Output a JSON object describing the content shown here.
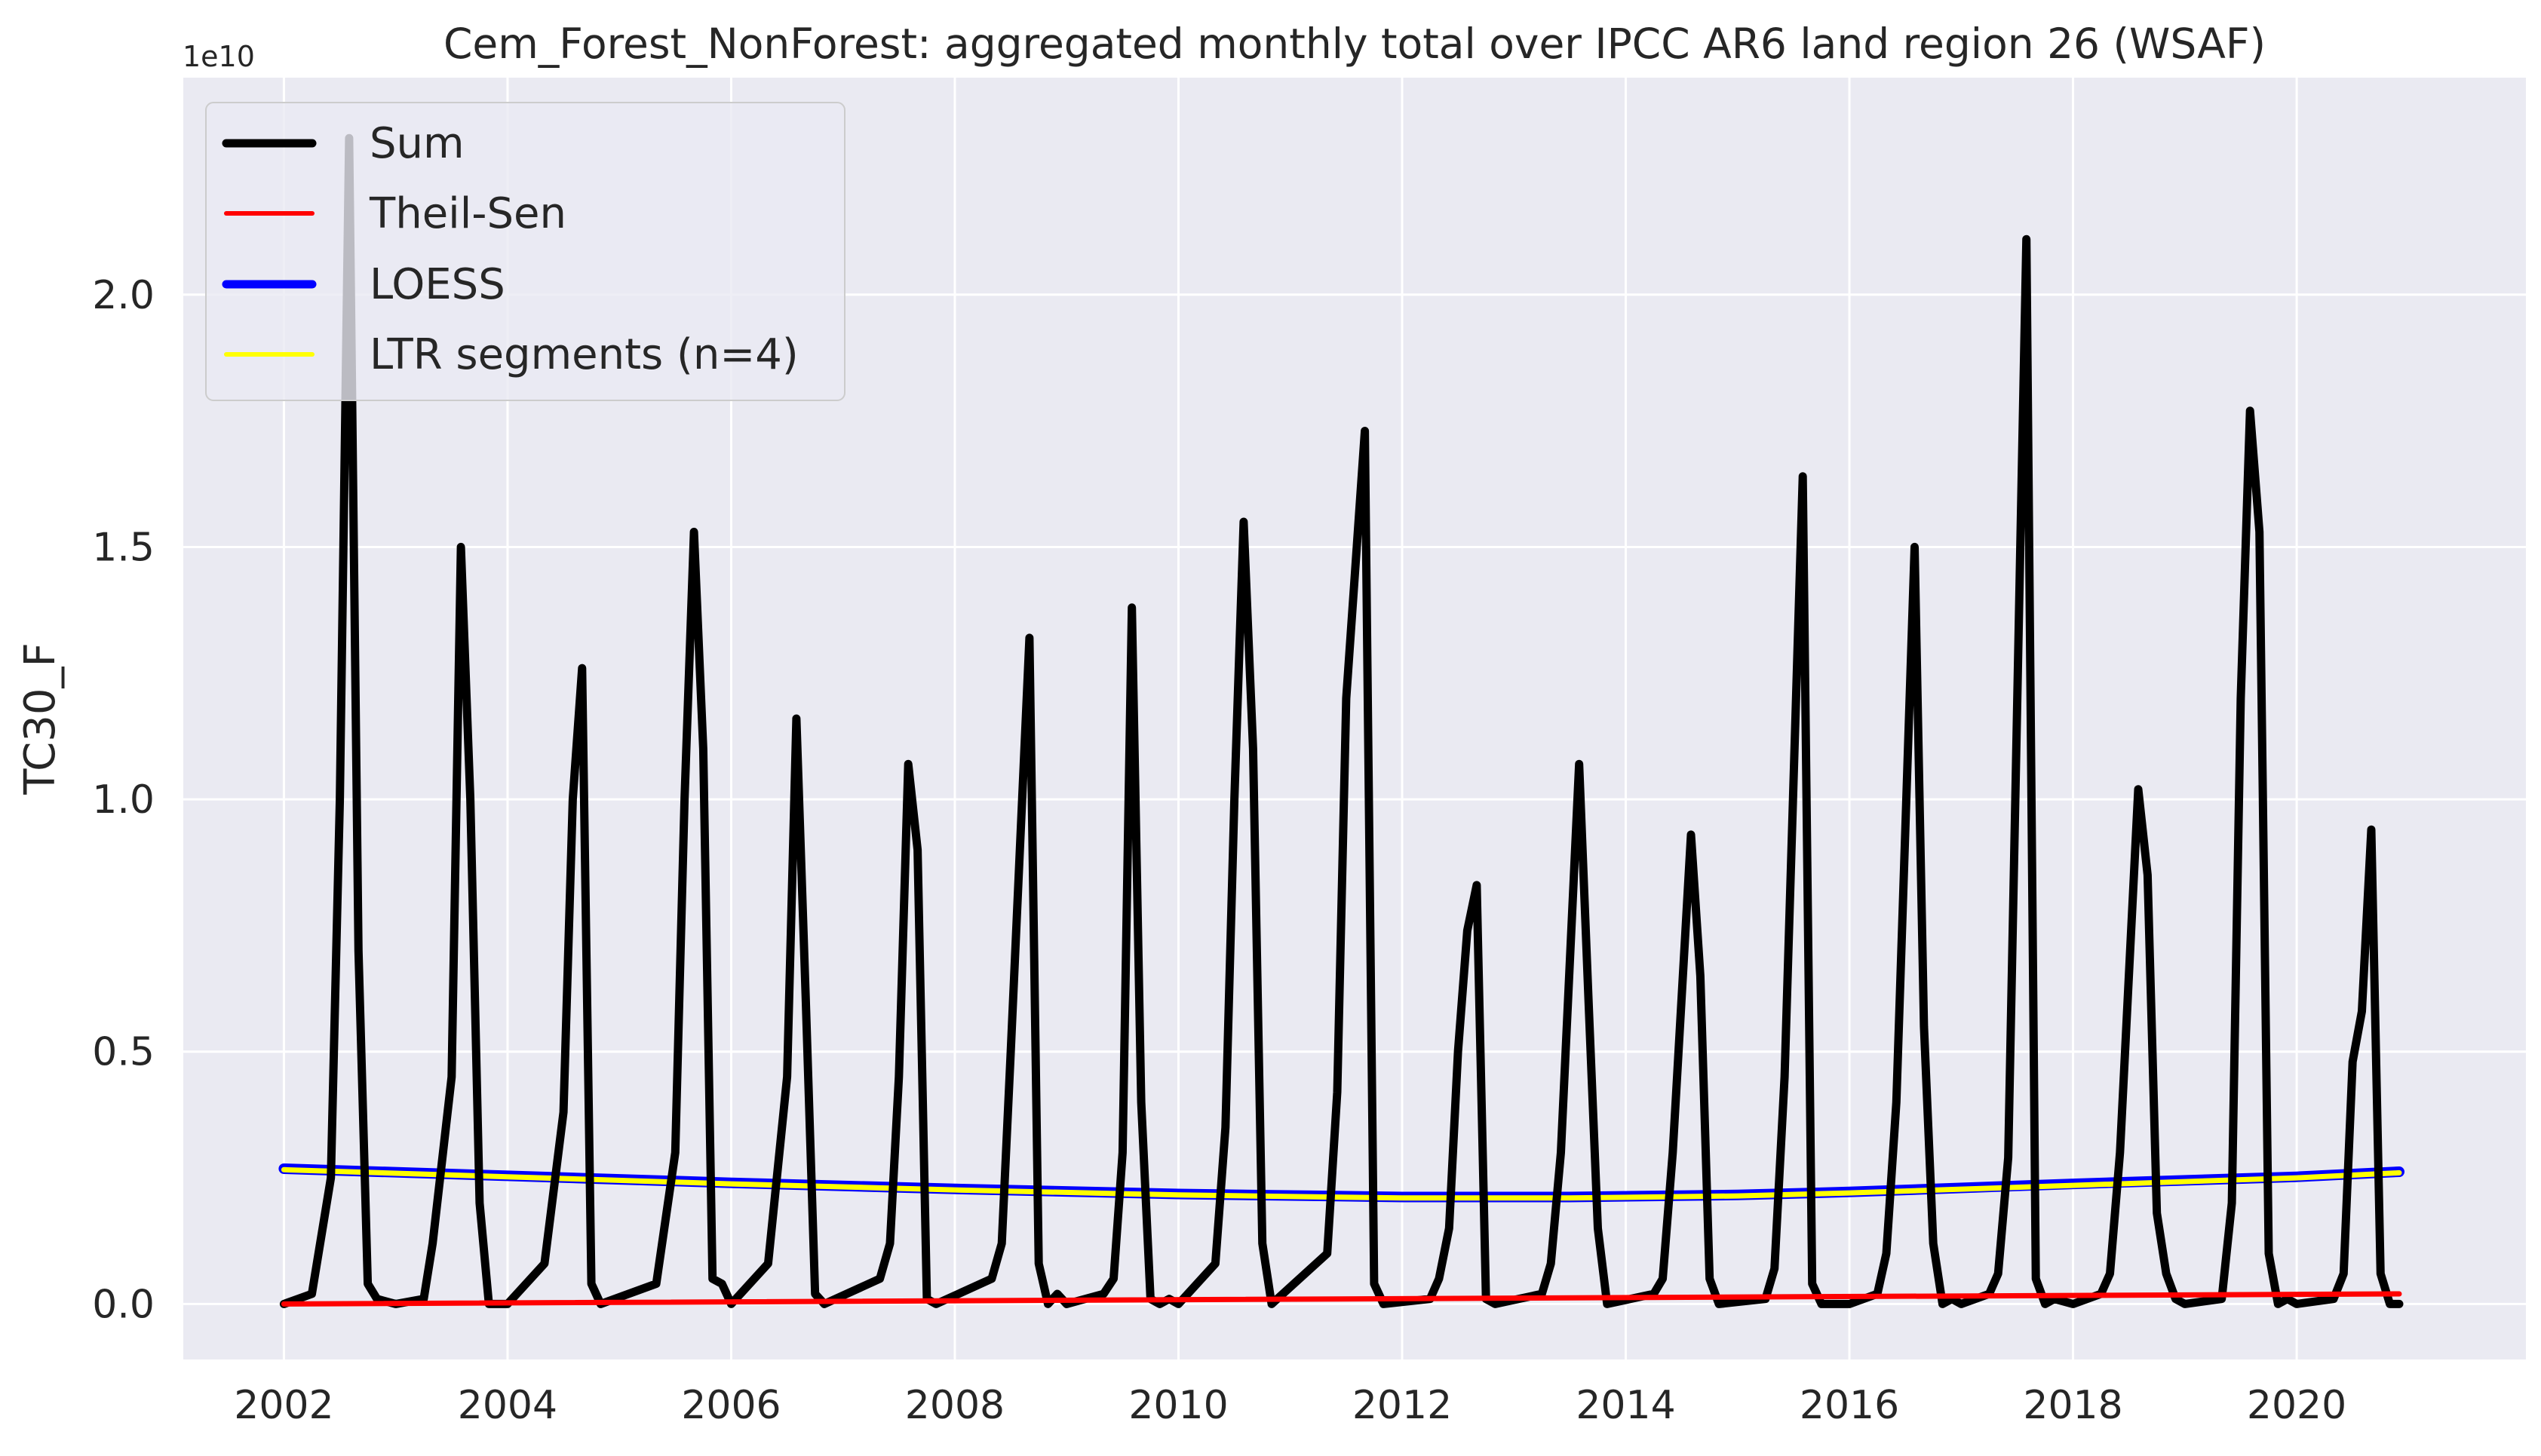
{
  "chart_data": {
    "type": "line",
    "title": "Cem_Forest_NonForest: aggregated monthly total over IPCC AR6 land region 26 (WSAF)",
    "ylabel": "TC30_F",
    "xlabel": "",
    "y_offset_label": "1e10",
    "y_scale": 10000000000.0,
    "xlim": [
      2001.1,
      2022.05
    ],
    "ylim": [
      -0.11,
      2.43
    ],
    "x_ticks": [
      2002,
      2004,
      2006,
      2008,
      2010,
      2012,
      2014,
      2016,
      2018,
      2020
    ],
    "x_tick_labels": [
      "2002",
      "2004",
      "2006",
      "2008",
      "2010",
      "2012",
      "2014",
      "2016",
      "2018",
      "2020"
    ],
    "y_ticks": [
      0.0,
      0.5,
      1.0,
      1.5,
      2.0
    ],
    "y_tick_labels": [
      "0.0",
      "0.5",
      "1.0",
      "1.5",
      "2.0"
    ],
    "grid": true,
    "background": "#eaeaf2",
    "legend_position": "upper-left",
    "colors": {
      "sum": "#000000",
      "theil_sen": "#ff0000",
      "loess": "#0000ff",
      "ltr": "#ffff00"
    },
    "legend": [
      {
        "label": "Sum",
        "color": "#000000"
      },
      {
        "label": "Theil-Sen",
        "color": "#ff0000"
      },
      {
        "label": "LOESS",
        "color": "#0000ff"
      },
      {
        "label": "LTR segments (n=4)",
        "color": "#ffff00"
      }
    ],
    "series": [
      {
        "name": "Sum",
        "points": [
          [
            2002.0,
            0.0
          ],
          [
            2002.25,
            0.02
          ],
          [
            2002.42,
            0.25
          ],
          [
            2002.5,
            1.0
          ],
          [
            2002.583,
            2.31
          ],
          [
            2002.667,
            0.7
          ],
          [
            2002.75,
            0.04
          ],
          [
            2002.833,
            0.01
          ],
          [
            2003.0,
            0.0
          ],
          [
            2003.25,
            0.01
          ],
          [
            2003.33,
            0.12
          ],
          [
            2003.5,
            0.45
          ],
          [
            2003.583,
            1.5
          ],
          [
            2003.667,
            1.0
          ],
          [
            2003.75,
            0.2
          ],
          [
            2003.833,
            0.0
          ],
          [
            2004.0,
            0.0
          ],
          [
            2004.33,
            0.08
          ],
          [
            2004.5,
            0.38
          ],
          [
            2004.583,
            1.0
          ],
          [
            2004.667,
            1.26
          ],
          [
            2004.75,
            0.04
          ],
          [
            2004.833,
            0.0
          ],
          [
            2005.33,
            0.04
          ],
          [
            2005.5,
            0.3
          ],
          [
            2005.583,
            1.0
          ],
          [
            2005.667,
            1.53
          ],
          [
            2005.75,
            1.1
          ],
          [
            2005.833,
            0.05
          ],
          [
            2005.917,
            0.04
          ],
          [
            2006.0,
            0.0
          ],
          [
            2006.33,
            0.08
          ],
          [
            2006.5,
            0.45
          ],
          [
            2006.583,
            1.16
          ],
          [
            2006.667,
            0.6
          ],
          [
            2006.75,
            0.02
          ],
          [
            2006.833,
            0.0
          ],
          [
            2007.33,
            0.05
          ],
          [
            2007.42,
            0.12
          ],
          [
            2007.5,
            0.45
          ],
          [
            2007.583,
            1.07
          ],
          [
            2007.667,
            0.9
          ],
          [
            2007.75,
            0.01
          ],
          [
            2007.833,
            0.0
          ],
          [
            2008.33,
            0.05
          ],
          [
            2008.42,
            0.12
          ],
          [
            2008.5,
            0.5
          ],
          [
            2008.667,
            1.32
          ],
          [
            2008.75,
            0.08
          ],
          [
            2008.833,
            0.0
          ],
          [
            2008.917,
            0.02
          ],
          [
            2009.0,
            0.0
          ],
          [
            2009.33,
            0.02
          ],
          [
            2009.42,
            0.05
          ],
          [
            2009.5,
            0.3
          ],
          [
            2009.583,
            1.38
          ],
          [
            2009.667,
            0.4
          ],
          [
            2009.75,
            0.01
          ],
          [
            2009.833,
            0.0
          ],
          [
            2009.917,
            0.01
          ],
          [
            2010.0,
            0.0
          ],
          [
            2010.33,
            0.08
          ],
          [
            2010.42,
            0.35
          ],
          [
            2010.5,
            1.0
          ],
          [
            2010.583,
            1.55
          ],
          [
            2010.667,
            1.1
          ],
          [
            2010.75,
            0.12
          ],
          [
            2010.833,
            0.0
          ],
          [
            2011.33,
            0.1
          ],
          [
            2011.42,
            0.42
          ],
          [
            2011.5,
            1.2
          ],
          [
            2011.667,
            1.73
          ],
          [
            2011.75,
            0.04
          ],
          [
            2011.833,
            0.0
          ],
          [
            2012.25,
            0.01
          ],
          [
            2012.33,
            0.05
          ],
          [
            2012.42,
            0.15
          ],
          [
            2012.5,
            0.5
          ],
          [
            2012.583,
            0.74
          ],
          [
            2012.667,
            0.83
          ],
          [
            2012.75,
            0.01
          ],
          [
            2012.833,
            0.0
          ],
          [
            2013.25,
            0.02
          ],
          [
            2013.33,
            0.08
          ],
          [
            2013.42,
            0.3
          ],
          [
            2013.583,
            1.07
          ],
          [
            2013.667,
            0.6
          ],
          [
            2013.75,
            0.15
          ],
          [
            2013.833,
            0.0
          ],
          [
            2014.25,
            0.02
          ],
          [
            2014.33,
            0.05
          ],
          [
            2014.42,
            0.3
          ],
          [
            2014.583,
            0.93
          ],
          [
            2014.667,
            0.65
          ],
          [
            2014.75,
            0.05
          ],
          [
            2014.833,
            0.0
          ],
          [
            2015.25,
            0.01
          ],
          [
            2015.33,
            0.07
          ],
          [
            2015.42,
            0.45
          ],
          [
            2015.583,
            1.64
          ],
          [
            2015.667,
            0.04
          ],
          [
            2015.75,
            0.0
          ],
          [
            2015.917,
            0.0
          ],
          [
            2016.0,
            0.0
          ],
          [
            2016.25,
            0.02
          ],
          [
            2016.33,
            0.1
          ],
          [
            2016.42,
            0.4
          ],
          [
            2016.583,
            1.5
          ],
          [
            2016.667,
            0.55
          ],
          [
            2016.75,
            0.12
          ],
          [
            2016.833,
            0.0
          ],
          [
            2016.917,
            0.01
          ],
          [
            2017.0,
            0.0
          ],
          [
            2017.25,
            0.02
          ],
          [
            2017.33,
            0.06
          ],
          [
            2017.42,
            0.29
          ],
          [
            2017.583,
            2.11
          ],
          [
            2017.667,
            0.05
          ],
          [
            2017.75,
            0.0
          ],
          [
            2017.833,
            0.01
          ],
          [
            2018.0,
            0.0
          ],
          [
            2018.25,
            0.02
          ],
          [
            2018.33,
            0.06
          ],
          [
            2018.42,
            0.3
          ],
          [
            2018.583,
            1.02
          ],
          [
            2018.667,
            0.85
          ],
          [
            2018.75,
            0.18
          ],
          [
            2018.833,
            0.06
          ],
          [
            2018.917,
            0.01
          ],
          [
            2019.0,
            0.0
          ],
          [
            2019.33,
            0.01
          ],
          [
            2019.42,
            0.2
          ],
          [
            2019.5,
            1.2
          ],
          [
            2019.583,
            1.77
          ],
          [
            2019.667,
            1.53
          ],
          [
            2019.75,
            0.1
          ],
          [
            2019.833,
            0.0
          ],
          [
            2019.917,
            0.01
          ],
          [
            2020.0,
            0.0
          ],
          [
            2020.33,
            0.01
          ],
          [
            2020.42,
            0.06
          ],
          [
            2020.5,
            0.48
          ],
          [
            2020.583,
            0.58
          ],
          [
            2020.667,
            0.94
          ],
          [
            2020.75,
            0.06
          ],
          [
            2020.833,
            0.0
          ],
          [
            2020.917,
            0.0
          ]
        ]
      },
      {
        "name": "Theil-Sen",
        "points": [
          [
            2002.0,
            0.0
          ],
          [
            2020.917,
            0.02
          ]
        ]
      },
      {
        "name": "LOESS",
        "points": [
          [
            2002.0,
            0.268
          ],
          [
            2004.0,
            0.254
          ],
          [
            2006.0,
            0.24
          ],
          [
            2008.0,
            0.228
          ],
          [
            2010.0,
            0.218
          ],
          [
            2012.0,
            0.212
          ],
          [
            2013.5,
            0.212
          ],
          [
            2015.0,
            0.216
          ],
          [
            2016.0,
            0.222
          ],
          [
            2018.0,
            0.238
          ],
          [
            2020.0,
            0.252
          ],
          [
            2020.917,
            0.262
          ]
        ]
      },
      {
        "name": "LTR segments (n=4)",
        "points": [
          [
            2002.0,
            0.266
          ],
          [
            2004.0,
            0.252
          ],
          [
            2006.0,
            0.238
          ],
          [
            2008.0,
            0.226
          ],
          [
            2010.0,
            0.216
          ],
          [
            2012.0,
            0.21
          ],
          [
            2013.5,
            0.21
          ],
          [
            2015.0,
            0.214
          ],
          [
            2016.0,
            0.22
          ],
          [
            2018.0,
            0.235
          ],
          [
            2020.0,
            0.25
          ],
          [
            2020.917,
            0.26
          ]
        ]
      }
    ]
  }
}
